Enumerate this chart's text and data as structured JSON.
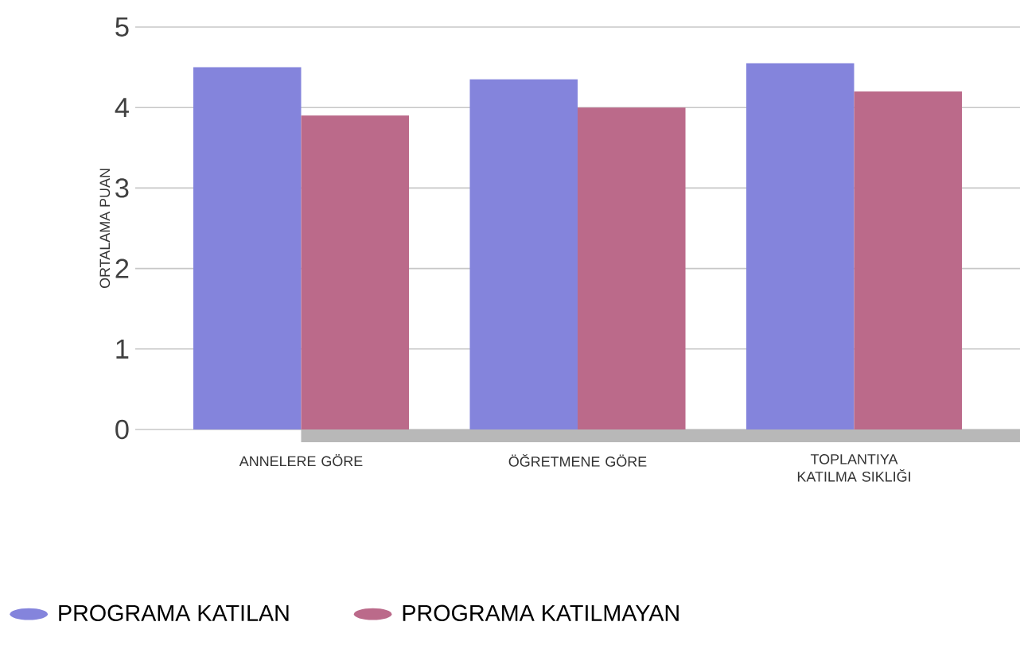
{
  "chart_data": {
    "type": "bar",
    "ylabel": "ORTALAMA PUAN",
    "categories": [
      "ANNELERE GÖRE",
      "ÖĞRETMENE GÖRE",
      "TOPLANTIYA KATILMA SIKLIĞI"
    ],
    "series": [
      {
        "name": "PROGRAMA KATILAN",
        "color": "#8484dc",
        "values": [
          4.5,
          4.35,
          4.55
        ]
      },
      {
        "name": "PROGRAMA KATILMAYAN",
        "color": "#bb6a8a",
        "values": [
          3.9,
          4.0,
          4.2
        ]
      }
    ],
    "ylim": [
      0,
      5
    ],
    "yticks": [
      0,
      1,
      2,
      3,
      4,
      5
    ],
    "grid": "y",
    "legend": "bottom"
  }
}
